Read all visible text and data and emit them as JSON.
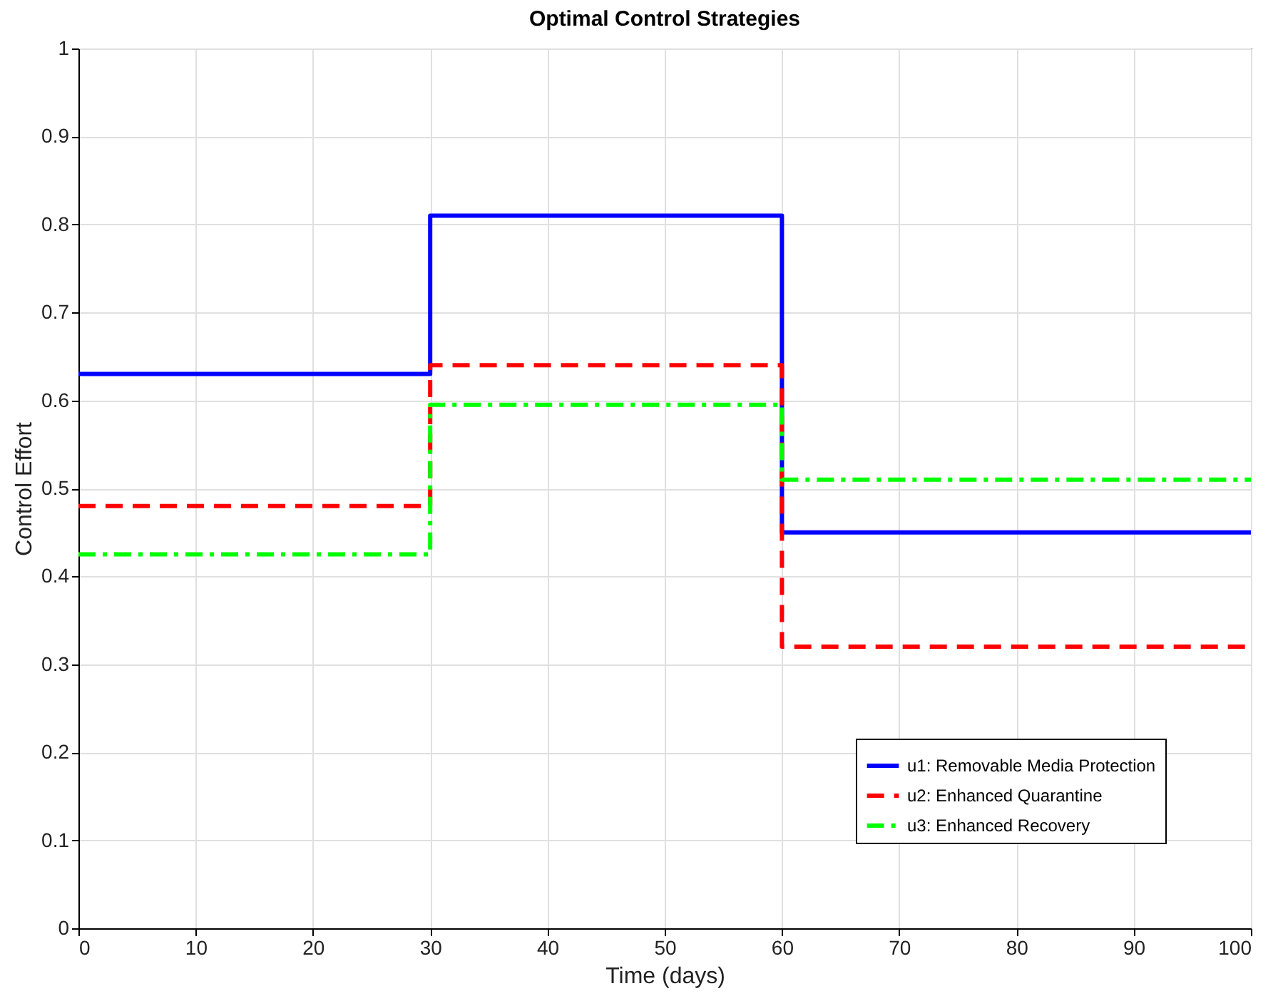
{
  "chart_data": {
    "type": "step",
    "title": "Optimal Control Strategies",
    "xlabel": "Time (days)",
    "ylabel": "Control Effort",
    "x": [
      0,
      30,
      60,
      100
    ],
    "series": [
      {
        "name": "u1: Removable Media Protection",
        "color": "#0000ff",
        "line_style": "solid",
        "values": [
          0.63,
          0.81,
          0.45,
          0.45
        ]
      },
      {
        "name": "u2: Enhanced Quarantine",
        "color": "#ff0000",
        "line_style": "dashed",
        "values": [
          0.48,
          0.64,
          0.32,
          0.32
        ]
      },
      {
        "name": "u3: Enhanced Recovery",
        "color": "#00ff00",
        "line_style": "dashdot",
        "values": [
          0.425,
          0.595,
          0.51,
          0.51
        ]
      }
    ],
    "xlim": [
      0,
      100
    ],
    "xticks": [
      0,
      10,
      20,
      30,
      40,
      50,
      60,
      70,
      80,
      90,
      100
    ],
    "ylim": [
      0,
      1
    ],
    "yticks": [
      0,
      0.1,
      0.2,
      0.3,
      0.4,
      0.5,
      0.6,
      0.7,
      0.8,
      0.9,
      1
    ],
    "grid": true,
    "legend": "bottom right",
    "marker": "none"
  }
}
